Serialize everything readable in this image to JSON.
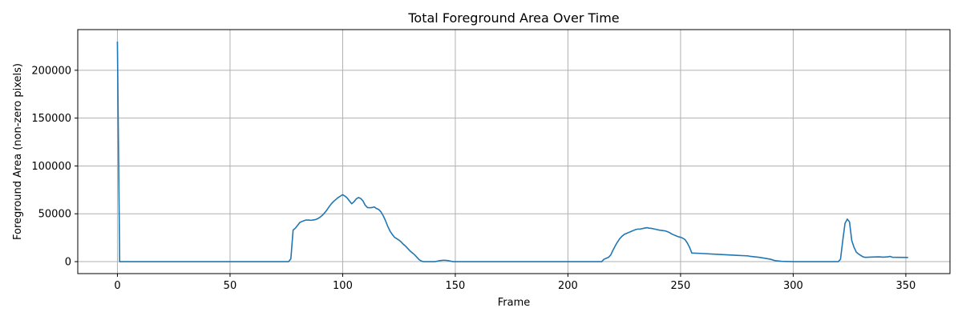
{
  "chart_data": {
    "type": "line",
    "title": "Total Foreground Area Over Time",
    "xlabel": "Frame",
    "ylabel": "Foreground Area (non-zero pixels)",
    "xlim": [
      -17.6,
      369.6
    ],
    "ylim": [
      -12500,
      242500
    ],
    "xticks": [
      0,
      50,
      100,
      150,
      200,
      250,
      300,
      350
    ],
    "yticks": [
      0,
      50000,
      100000,
      150000,
      200000
    ],
    "grid": true,
    "legend": "none",
    "series": [
      {
        "color": "#1f77b4",
        "points": [
          [
            0,
            230000
          ],
          [
            1,
            0
          ],
          [
            2,
            0
          ],
          [
            76,
            0
          ],
          [
            77,
            3000
          ],
          [
            78,
            33000
          ],
          [
            79,
            35000
          ],
          [
            80,
            38000
          ],
          [
            81,
            41000
          ],
          [
            82,
            42000
          ],
          [
            83,
            43000
          ],
          [
            84,
            43500
          ],
          [
            85,
            43500
          ],
          [
            86,
            43200
          ],
          [
            87,
            43600
          ],
          [
            88,
            44000
          ],
          [
            89,
            45000
          ],
          [
            90,
            46500
          ],
          [
            91,
            48500
          ],
          [
            92,
            51000
          ],
          [
            93,
            54000
          ],
          [
            94,
            57500
          ],
          [
            95,
            60500
          ],
          [
            96,
            63000
          ],
          [
            97,
            65000
          ],
          [
            98,
            67000
          ],
          [
            99,
            68500
          ],
          [
            100,
            70000
          ],
          [
            101,
            68500
          ],
          [
            102,
            66500
          ],
          [
            103,
            63500
          ],
          [
            104,
            60500
          ],
          [
            105,
            62500
          ],
          [
            106,
            65500
          ],
          [
            107,
            67000
          ],
          [
            108,
            66000
          ],
          [
            109,
            63500
          ],
          [
            110,
            59000
          ],
          [
            111,
            56500
          ],
          [
            112,
            56300
          ],
          [
            113,
            56500
          ],
          [
            114,
            57200
          ],
          [
            115,
            55500
          ],
          [
            116,
            54500
          ],
          [
            117,
            52000
          ],
          [
            118,
            48000
          ],
          [
            119,
            43000
          ],
          [
            120,
            37000
          ],
          [
            121,
            32000
          ],
          [
            122,
            28500
          ],
          [
            123,
            25500
          ],
          [
            124,
            24000
          ],
          [
            125,
            22500
          ],
          [
            126,
            20500
          ],
          [
            127,
            18000
          ],
          [
            128,
            16000
          ],
          [
            129,
            13500
          ],
          [
            130,
            11000
          ],
          [
            131,
            9000
          ],
          [
            132,
            7000
          ],
          [
            133,
            4500
          ],
          [
            134,
            2000
          ],
          [
            135,
            500
          ],
          [
            136,
            0
          ],
          [
            141,
            0
          ],
          [
            143,
            1000
          ],
          [
            145,
            1500
          ],
          [
            147,
            1000
          ],
          [
            149,
            0
          ],
          [
            215,
            0
          ],
          [
            216,
            2500
          ],
          [
            217,
            3500
          ],
          [
            218,
            4500
          ],
          [
            219,
            7000
          ],
          [
            220,
            12000
          ],
          [
            221,
            16500
          ],
          [
            222,
            20500
          ],
          [
            223,
            24000
          ],
          [
            224,
            26500
          ],
          [
            225,
            28500
          ],
          [
            226,
            29500
          ],
          [
            227,
            30500
          ],
          [
            228,
            31500
          ],
          [
            229,
            32500
          ],
          [
            230,
            33500
          ],
          [
            231,
            34000
          ],
          [
            232,
            34000
          ],
          [
            233,
            34500
          ],
          [
            234,
            35000
          ],
          [
            235,
            35500
          ],
          [
            236,
            35000
          ],
          [
            237,
            34800
          ],
          [
            238,
            34300
          ],
          [
            239,
            33800
          ],
          [
            240,
            33200
          ],
          [
            241,
            32800
          ],
          [
            242,
            32500
          ],
          [
            243,
            32200
          ],
          [
            244,
            31500
          ],
          [
            245,
            30500
          ],
          [
            246,
            29000
          ],
          [
            247,
            28000
          ],
          [
            248,
            27000
          ],
          [
            249,
            26000
          ],
          [
            250,
            25500
          ],
          [
            251,
            24500
          ],
          [
            252,
            23000
          ],
          [
            253,
            19500
          ],
          [
            254,
            15000
          ],
          [
            255,
            9000
          ],
          [
            260,
            8500
          ],
          [
            265,
            7800
          ],
          [
            270,
            7200
          ],
          [
            275,
            6600
          ],
          [
            280,
            6000
          ],
          [
            281,
            5500
          ],
          [
            285,
            4500
          ],
          [
            290,
            2500
          ],
          [
            292,
            1000
          ],
          [
            295,
            300
          ],
          [
            300,
            0
          ],
          [
            320,
            0
          ],
          [
            321,
            2500
          ],
          [
            322,
            22000
          ],
          [
            323,
            40000
          ],
          [
            324,
            44500
          ],
          [
            325,
            41500
          ],
          [
            326,
            22000
          ],
          [
            327,
            15000
          ],
          [
            328,
            10000
          ],
          [
            329,
            8000
          ],
          [
            330,
            6500
          ],
          [
            331,
            5000
          ],
          [
            332,
            4500
          ],
          [
            335,
            4800
          ],
          [
            338,
            5000
          ],
          [
            340,
            4700
          ],
          [
            342,
            5000
          ],
          [
            343,
            5500
          ],
          [
            344,
            4600
          ],
          [
            347,
            4500
          ],
          [
            351,
            4400
          ]
        ]
      }
    ]
  }
}
